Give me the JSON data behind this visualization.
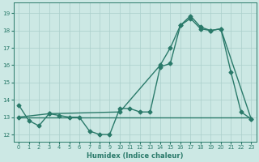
{
  "line1_x": [
    0,
    1,
    2,
    3,
    4,
    5,
    6,
    7,
    8,
    9,
    10,
    11,
    12,
    13,
    14,
    15,
    16,
    17,
    18,
    19,
    20,
    21,
    22,
    23
  ],
  "line1_y": [
    13.7,
    12.8,
    12.5,
    13.2,
    13.1,
    13.0,
    13.0,
    12.2,
    12.0,
    12.0,
    13.5,
    13.5,
    13.3,
    13.3,
    15.9,
    16.1,
    18.3,
    18.85,
    18.2,
    18.0,
    18.1,
    15.6,
    13.3,
    12.9
  ],
  "line2_x": [
    0,
    23
  ],
  "line2_y": [
    13.0,
    13.0
  ],
  "line3_x": [
    0,
    3,
    10,
    14,
    15,
    16,
    17,
    18,
    19,
    20,
    23
  ],
  "line3_y": [
    13.0,
    13.2,
    13.3,
    16.0,
    17.0,
    18.3,
    18.7,
    18.1,
    18.0,
    18.1,
    12.9
  ],
  "line_color": "#2a7a6a",
  "bg_color": "#cce8e4",
  "grid_color": "#aacfcb",
  "xlabel": "Humidex (Indice chaleur)",
  "xlim": [
    -0.5,
    23.5
  ],
  "ylim": [
    11.6,
    19.6
  ],
  "yticks": [
    12,
    13,
    14,
    15,
    16,
    17,
    18,
    19
  ],
  "xticks": [
    0,
    1,
    2,
    3,
    4,
    5,
    6,
    7,
    8,
    9,
    10,
    11,
    12,
    13,
    14,
    15,
    16,
    17,
    18,
    19,
    20,
    21,
    22,
    23
  ],
  "marker": "D",
  "markersize": 2.5,
  "linewidth": 1.0
}
